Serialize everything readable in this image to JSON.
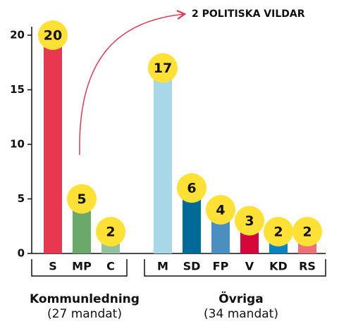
{
  "chart_data": {
    "type": "bar",
    "annotation": "2 POLITISKA VILDAR",
    "ylim": [
      0,
      20
    ],
    "yticks": [
      0,
      5,
      10,
      15,
      20
    ],
    "groups": [
      {
        "name": "Kommunledning",
        "note": "(27 mandat)",
        "categories": [
          "S",
          "MP",
          "C"
        ],
        "values": [
          20,
          5,
          2
        ],
        "colors": [
          "#e8384f",
          "#6aa96a",
          "#93c29f"
        ]
      },
      {
        "name": "Övriga",
        "note": "(34 mandat)",
        "categories": [
          "M",
          "SD",
          "FP",
          "V",
          "KD",
          "RS"
        ],
        "values": [
          17,
          6,
          4,
          3,
          2,
          2
        ],
        "colors": [
          "#a8d8e8",
          "#006b96",
          "#4a8fbf",
          "#d7063a",
          "#0a84c0",
          "#f07078"
        ]
      }
    ]
  }
}
